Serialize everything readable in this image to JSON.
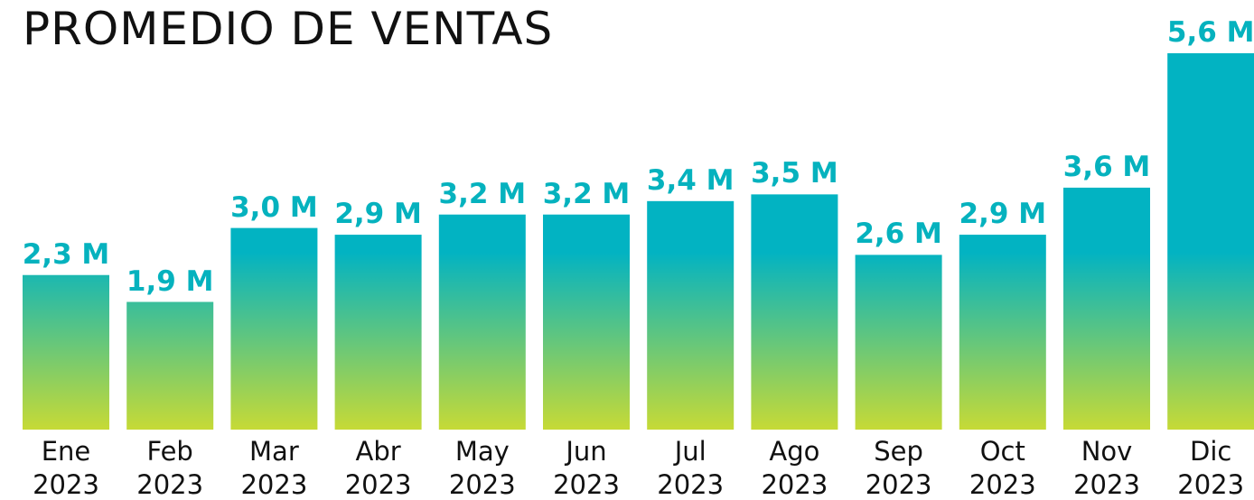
{
  "chart_data": {
    "type": "bar",
    "title": "PROMEDIO DE VENTAS",
    "categories": [
      "Ene 2023",
      "Feb 2023",
      "Mar 2023",
      "Abr 2023",
      "May 2023",
      "Jun 2023",
      "Jul 2023",
      "Ago 2023",
      "Sep 2023",
      "Oct 2023",
      "Nov 2023",
      "Dic 2023"
    ],
    "values": [
      2.3,
      1.9,
      3.0,
      2.9,
      3.2,
      3.2,
      3.4,
      3.5,
      2.6,
      2.9,
      3.6,
      5.6
    ],
    "value_labels": [
      "2,3 M",
      "1,9 M",
      "3,0 M",
      "2,9 M",
      "3,2 M",
      "3,2 M",
      "3,4 M",
      "3,5 M",
      "2,6 M",
      "2,9 M",
      "3,6 M",
      "5,6 M"
    ],
    "gradient": [
      "#02b3c2",
      "#c6da36"
    ]
  }
}
